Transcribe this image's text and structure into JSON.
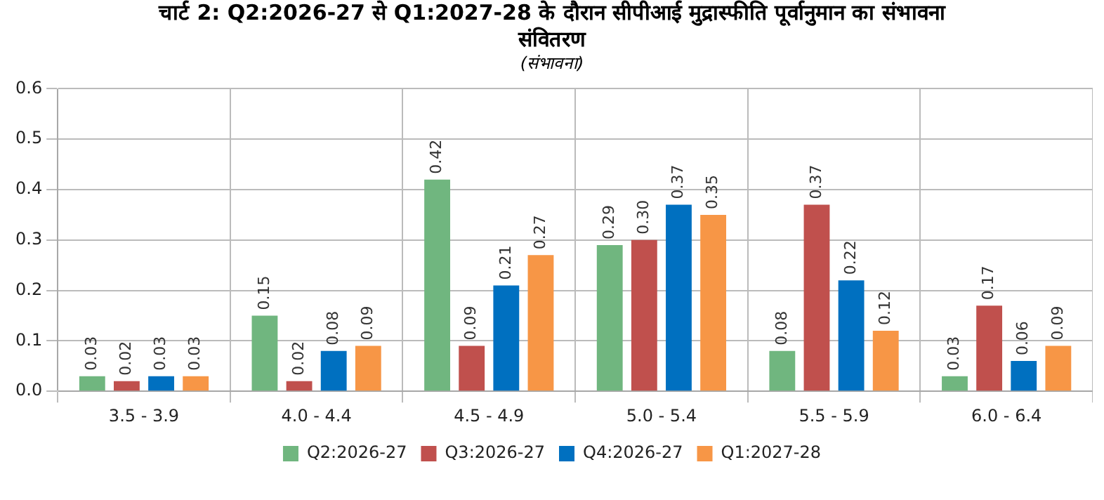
{
  "chart_data": {
    "type": "bar",
    "title": "चार्ट 2: Q2:2026-27 से Q1:2027-28 के दौरान सीपीआई मुद्रास्फीति पूर्वानुमान का संभावना संवितरण",
    "subtitle": "(संभावना)",
    "categories": [
      "3.5 - 3.9",
      "4.0 - 4.4",
      "4.5 - 4.9",
      "5.0 - 5.4",
      "5.5 - 5.9",
      "6.0 - 6.4"
    ],
    "series": [
      {
        "name": "Q2:2026-27",
        "color": "#70b67f",
        "values": [
          0.03,
          0.15,
          0.42,
          0.29,
          0.08,
          0.03
        ],
        "value_labels": [
          "0.03",
          "0.15",
          "0.42",
          "0.29",
          "0.08",
          "0.03"
        ]
      },
      {
        "name": "Q3:2026-27",
        "color": "#c0504d",
        "values": [
          0.02,
          0.02,
          0.09,
          0.3,
          0.37,
          0.17
        ],
        "value_labels": [
          "0.02",
          "0.02",
          "0.09",
          "0.30",
          "0.37",
          "0.17"
        ]
      },
      {
        "name": "Q4:2026-27",
        "color": "#0070c0",
        "values": [
          0.03,
          0.08,
          0.21,
          0.37,
          0.22,
          0.06
        ],
        "value_labels": [
          "0.03",
          "0.08",
          "0.21",
          "0.37",
          "0.22",
          "0.06"
        ]
      },
      {
        "name": "Q1:2027-28",
        "color": "#f79646",
        "values": [
          0.03,
          0.09,
          0.27,
          0.35,
          0.12,
          0.09
        ],
        "value_labels": [
          "0.03",
          "0.09",
          "0.27",
          "0.35",
          "0.12",
          "0.09"
        ]
      }
    ],
    "ylim": [
      0,
      0.6
    ],
    "yticks": [
      {
        "value": 0,
        "label": "0.0"
      },
      {
        "value": 0.1,
        "label": "0.1"
      },
      {
        "value": 0.2,
        "label": "0.2"
      },
      {
        "value": 0.3,
        "label": "0.3"
      },
      {
        "value": 0.4,
        "label": "0.4"
      },
      {
        "value": 0.5,
        "label": "0.5"
      },
      {
        "value": 0.6,
        "label": "0.6"
      }
    ],
    "grid": true,
    "legend": "bottom"
  }
}
